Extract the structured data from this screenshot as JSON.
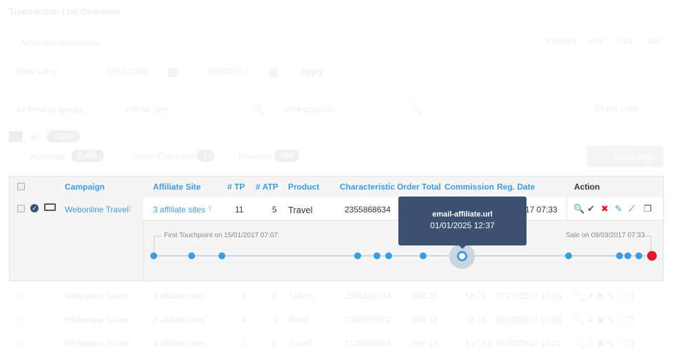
{
  "page": {
    "title": "Transaction List Overview",
    "add_button": "Add sales transaction",
    "export": [
      "EXPORT",
      "PDF",
      "CSV",
      "XML"
    ],
    "filters": {
      "range": "Untill today",
      "from": "01/01/2000",
      "sep": "-",
      "to": "09/03/2017",
      "apply": "Apply",
      "product_groups": "All Product groups",
      "affiliate_placeholder": "Affiliate site",
      "characteristic_placeholder": "Characteristic",
      "per_page": "25 per page"
    },
    "status": {
      "all_label": "All:",
      "all_count": "7,138",
      "accepted_label": "Accepted:",
      "accepted_count": "6,454",
      "eval_label": "Under Evaluation:",
      "eval_count": "0",
      "rejected_label": "Rejected:",
      "rejected_count": "684"
    },
    "paths_only": "Paths only"
  },
  "table": {
    "headers": {
      "campaign": "Campaign",
      "affiliate": "Affiliate Site",
      "tp": "# TP",
      "atp": "# ATP",
      "product": "Product",
      "characteristic": "Characteristic",
      "order_total": "Order Total",
      "commission": "Commission",
      "reg_date": "Reg. Date",
      "action": "Action"
    },
    "expanded_row": {
      "campaign": "Webonline Travel",
      "affiliate": "3 affiliate sites",
      "tp": "11",
      "atp": "5",
      "product": "Travel",
      "characteristic": "2355868634",
      "reg_date_visible": "17 07:33",
      "timeline": {
        "first": "First Touchpoint on 15/01/2017 07:07",
        "sale": "Sale on 09/03/2017 07:33",
        "tooltip": {
          "source": "email-affiliate.url",
          "date": "01/01/2025 12:37"
        }
      }
    },
    "rows": [
      {
        "campaign": "Webonline Travel",
        "affiliate": "2 affiliate sites",
        "tp": "6",
        "atp": "2",
        "product": "Tickets",
        "characteristic": "2545101234",
        "order_total": "€90.25",
        "commission": "€8.76",
        "reg_date": "07/03/2017 12:16"
      },
      {
        "campaign": "Webonline Travel",
        "affiliate": "2 affiliate sites",
        "tp": "4",
        "atp": "3",
        "product": "Retail",
        "characteristic": "2348575932",
        "order_total": "€90.12",
        "commission": "€8.15",
        "reg_date": "09/03/2017 07:33"
      },
      {
        "campaign": "Webonline Travel",
        "affiliate": "4 affiliate sites",
        "tp": "7",
        "atp": "5",
        "product": "Travel",
        "characteristic": "2135648994",
        "order_total": "€92.13",
        "commission": "€17.53",
        "reg_date": "06/03/2017 10:21"
      }
    ]
  },
  "colors": {
    "accent": "#3d9be0",
    "tooltip": "#3c5070",
    "sale": "#e0192b"
  }
}
